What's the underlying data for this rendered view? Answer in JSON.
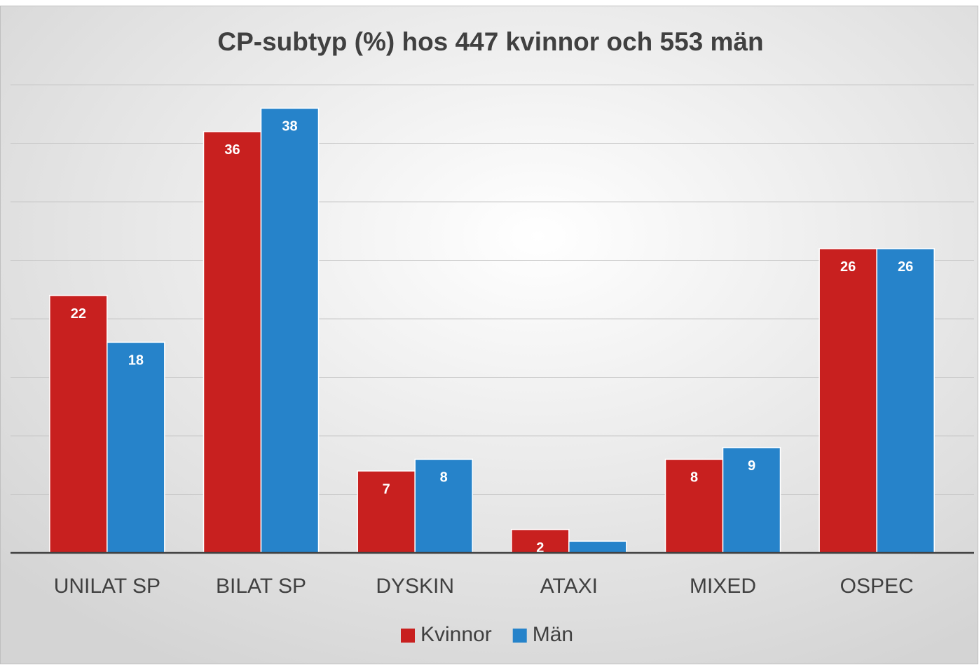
{
  "chart_data": {
    "type": "bar",
    "title": "CP-subtyp (%) hos 447 kvinnor och 553 män",
    "categories": [
      "UNILAT SP",
      "BILAT SP",
      "DYSKIN",
      "ATAXI",
      "MIXED",
      "OSPEC"
    ],
    "series": [
      {
        "name": "Kvinnor",
        "color": "#c8201f",
        "values": [
          22,
          36,
          7,
          2,
          8,
          26
        ]
      },
      {
        "name": "Män",
        "color": "#2683ca",
        "values": [
          18,
          38,
          8,
          1,
          9,
          26
        ],
        "value_labels": [
          "18",
          "38",
          "8",
          null,
          "9",
          "26"
        ]
      }
    ],
    "ylim": [
      0,
      40
    ],
    "yticks": [
      0,
      5,
      10,
      15,
      20,
      25,
      30,
      35,
      40
    ],
    "grid": true,
    "legend": "bottom"
  }
}
